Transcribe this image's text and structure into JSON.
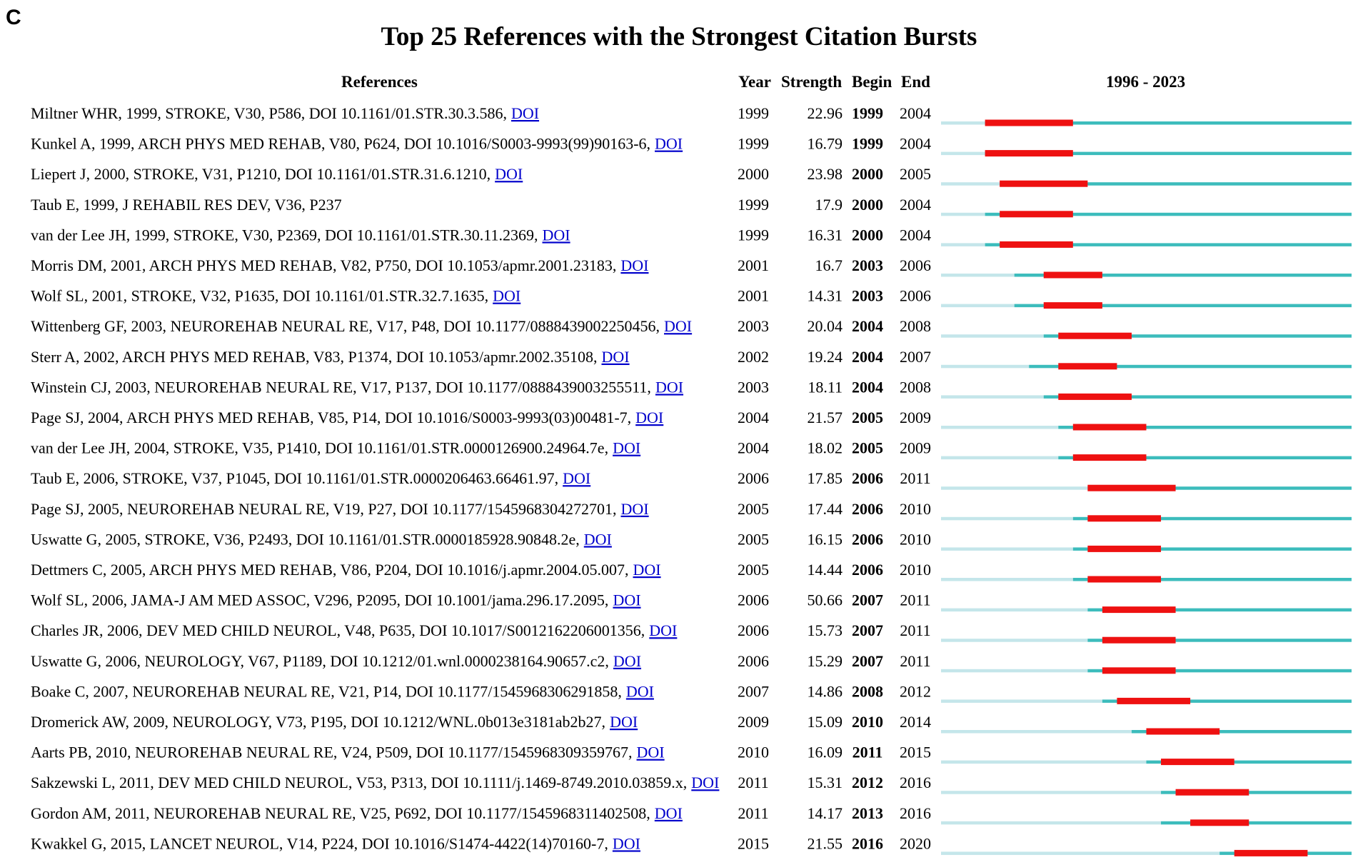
{
  "panel_label": "C",
  "chart_data": {
    "type": "table",
    "title": "Top 25 References with the Strongest Citation Bursts",
    "columns": [
      "References",
      "Year",
      "Strength",
      "Begin",
      "End",
      "1996 - 2023"
    ],
    "timeline_range": [
      1996,
      2023
    ],
    "colors": {
      "burst": "#ee1111",
      "active": "#3cbcbc",
      "pre": "#c4e6ea"
    },
    "rows": [
      {
        "ref": "Miltner WHR, 1999, STROKE, V30, P586, DOI 10.1161/01.STR.30.3.586,",
        "doi": "DOI",
        "year": 1999,
        "strength": "22.96",
        "begin": 1999,
        "end": 2004
      },
      {
        "ref": "Kunkel A, 1999, ARCH PHYS MED REHAB, V80, P624, DOI 10.1016/S0003-9993(99)90163-6,",
        "doi": "DOI",
        "year": 1999,
        "strength": "16.79",
        "begin": 1999,
        "end": 2004
      },
      {
        "ref": "Liepert J, 2000, STROKE, V31, P1210, DOI 10.1161/01.STR.31.6.1210,",
        "doi": "DOI",
        "year": 2000,
        "strength": "23.98",
        "begin": 2000,
        "end": 2005
      },
      {
        "ref": "Taub E, 1999, J REHABIL RES DEV, V36, P237",
        "doi": "",
        "year": 1999,
        "strength": "17.9",
        "begin": 2000,
        "end": 2004
      },
      {
        "ref": "van der Lee JH, 1999, STROKE, V30, P2369, DOI 10.1161/01.STR.30.11.2369,",
        "doi": "DOI",
        "year": 1999,
        "strength": "16.31",
        "begin": 2000,
        "end": 2004
      },
      {
        "ref": "Morris DM, 2001, ARCH PHYS MED REHAB, V82, P750, DOI 10.1053/apmr.2001.23183,",
        "doi": "DOI",
        "year": 2001,
        "strength": "16.7",
        "begin": 2003,
        "end": 2006
      },
      {
        "ref": "Wolf SL, 2001, STROKE, V32, P1635, DOI 10.1161/01.STR.32.7.1635,",
        "doi": "DOI",
        "year": 2001,
        "strength": "14.31",
        "begin": 2003,
        "end": 2006
      },
      {
        "ref": "Wittenberg GF, 2003, NEUROREHAB NEURAL RE, V17, P48, DOI 10.1177/0888439002250456,",
        "doi": "DOI",
        "year": 2003,
        "strength": "20.04",
        "begin": 2004,
        "end": 2008
      },
      {
        "ref": "Sterr A, 2002, ARCH PHYS MED REHAB, V83, P1374, DOI 10.1053/apmr.2002.35108,",
        "doi": "DOI",
        "year": 2002,
        "strength": "19.24",
        "begin": 2004,
        "end": 2007
      },
      {
        "ref": "Winstein CJ, 2003, NEUROREHAB NEURAL RE, V17, P137, DOI 10.1177/0888439003255511,",
        "doi": "DOI",
        "year": 2003,
        "strength": "18.11",
        "begin": 2004,
        "end": 2008
      },
      {
        "ref": "Page SJ, 2004, ARCH PHYS MED REHAB, V85, P14, DOI 10.1016/S0003-9993(03)00481-7,",
        "doi": "DOI",
        "year": 2004,
        "strength": "21.57",
        "begin": 2005,
        "end": 2009
      },
      {
        "ref": "van der Lee JH, 2004, STROKE, V35, P1410, DOI 10.1161/01.STR.0000126900.24964.7e,",
        "doi": "DOI",
        "year": 2004,
        "strength": "18.02",
        "begin": 2005,
        "end": 2009
      },
      {
        "ref": "Taub E, 2006, STROKE, V37, P1045, DOI 10.1161/01.STR.0000206463.66461.97,",
        "doi": "DOI",
        "year": 2006,
        "strength": "17.85",
        "begin": 2006,
        "end": 2011
      },
      {
        "ref": "Page SJ, 2005, NEUROREHAB NEURAL RE, V19, P27, DOI 10.1177/1545968304272701,",
        "doi": "DOI",
        "year": 2005,
        "strength": "17.44",
        "begin": 2006,
        "end": 2010
      },
      {
        "ref": "Uswatte G, 2005, STROKE, V36, P2493, DOI 10.1161/01.STR.0000185928.90848.2e,",
        "doi": "DOI",
        "year": 2005,
        "strength": "16.15",
        "begin": 2006,
        "end": 2010
      },
      {
        "ref": "Dettmers C, 2005, ARCH PHYS MED REHAB, V86, P204, DOI 10.1016/j.apmr.2004.05.007,",
        "doi": "DOI",
        "year": 2005,
        "strength": "14.44",
        "begin": 2006,
        "end": 2010
      },
      {
        "ref": "Wolf SL, 2006, JAMA-J AM MED ASSOC, V296, P2095, DOI 10.1001/jama.296.17.2095,",
        "doi": "DOI",
        "year": 2006,
        "strength": "50.66",
        "begin": 2007,
        "end": 2011
      },
      {
        "ref": "Charles JR, 2006, DEV MED CHILD NEUROL, V48, P635, DOI 10.1017/S0012162206001356,",
        "doi": "DOI",
        "year": 2006,
        "strength": "15.73",
        "begin": 2007,
        "end": 2011
      },
      {
        "ref": "Uswatte G, 2006, NEUROLOGY, V67, P1189, DOI 10.1212/01.wnl.0000238164.90657.c2,",
        "doi": "DOI",
        "year": 2006,
        "strength": "15.29",
        "begin": 2007,
        "end": 2011
      },
      {
        "ref": "Boake C, 2007, NEUROREHAB NEURAL RE, V21, P14, DOI 10.1177/1545968306291858,",
        "doi": "DOI",
        "year": 2007,
        "strength": "14.86",
        "begin": 2008,
        "end": 2012
      },
      {
        "ref": "Dromerick AW, 2009, NEUROLOGY, V73, P195, DOI 10.1212/WNL.0b013e3181ab2b27,",
        "doi": "DOI",
        "year": 2009,
        "strength": "15.09",
        "begin": 2010,
        "end": 2014
      },
      {
        "ref": "Aarts PB, 2010, NEUROREHAB NEURAL RE, V24, P509, DOI 10.1177/1545968309359767,",
        "doi": "DOI",
        "year": 2010,
        "strength": "16.09",
        "begin": 2011,
        "end": 2015
      },
      {
        "ref": "Sakzewski L, 2011, DEV MED CHILD NEUROL, V53, P313, DOI 10.1111/j.1469-8749.2010.03859.x,",
        "doi": "DOI",
        "year": 2011,
        "strength": "15.31",
        "begin": 2012,
        "end": 2016
      },
      {
        "ref": "Gordon AM, 2011, NEUROREHAB NEURAL RE, V25, P692, DOI 10.1177/1545968311402508,",
        "doi": "DOI",
        "year": 2011,
        "strength": "14.17",
        "begin": 2013,
        "end": 2016
      },
      {
        "ref": "Kwakkel G, 2015, LANCET NEUROL, V14, P224, DOI 10.1016/S1474-4422(14)70160-7,",
        "doi": "DOI",
        "year": 2015,
        "strength": "21.55",
        "begin": 2016,
        "end": 2020
      }
    ]
  }
}
